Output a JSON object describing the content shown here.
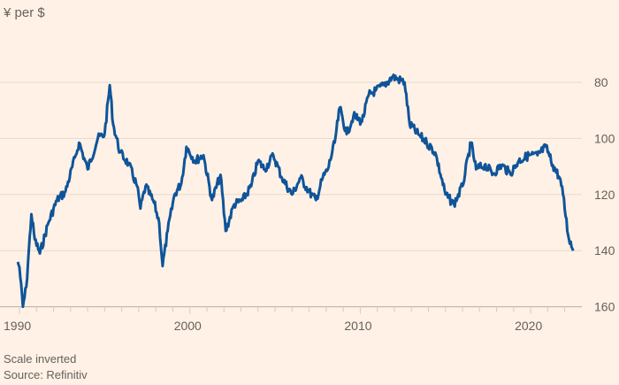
{
  "chart_data": {
    "type": "line",
    "title": "",
    "ylabel": "¥ per $",
    "xlabel": "",
    "y_inverted": true,
    "ylim": [
      80,
      160
    ],
    "xlim": [
      1990,
      2022.3
    ],
    "yticks": [
      80,
      100,
      120,
      140,
      160
    ],
    "xticks": [
      1990,
      2000,
      2010,
      2020
    ],
    "grid": true,
    "line_color": "#0f5499",
    "series": [
      {
        "name": "Yen per dollar",
        "x": [
          1989.9,
          1990.0,
          1990.2,
          1990.4,
          1990.7,
          1990.9,
          1991.2,
          1991.7,
          1992.2,
          1992.7,
          1993.3,
          1993.5,
          1994.0,
          1994.6,
          1995.0,
          1995.3,
          1995.5,
          1995.9,
          1996.4,
          1996.9,
          1997.1,
          1997.4,
          1997.9,
          1998.2,
          1998.4,
          1998.7,
          1999.1,
          1999.5,
          1999.8,
          2000.3,
          2000.8,
          2001.3,
          2001.8,
          2002.1,
          2002.6,
          2003.1,
          2003.6,
          2004.0,
          2004.4,
          2004.9,
          2005.4,
          2006.0,
          2006.5,
          2007.0,
          2007.4,
          2007.8,
          2008.1,
          2008.5,
          2008.8,
          2009.2,
          2009.6,
          2010.1,
          2010.5,
          2010.9,
          2011.4,
          2011.9,
          2012.6,
          2012.9,
          2013.4,
          2013.9,
          2014.4,
          2015.0,
          2015.5,
          2016.0,
          2016.5,
          2016.8,
          2017.3,
          2017.8,
          2018.3,
          2018.8,
          2019.3,
          2019.9,
          2020.4,
          2020.9,
          2021.3,
          2021.7,
          2021.9,
          2022.2,
          2022.5
        ],
        "values": [
          144,
          146,
          160,
          153,
          127,
          136,
          141,
          130,
          122,
          119,
          106,
          101.5,
          111,
          100,
          98.5,
          81,
          95,
          105,
          109,
          117,
          125,
          117,
          123,
          130,
          145.5,
          133,
          120,
          116,
          103,
          108,
          106,
          122,
          113,
          133,
          123.5,
          122,
          117,
          108,
          111,
          106,
          114,
          120,
          114,
          119,
          122,
          114,
          111,
          101.5,
          89,
          98.5,
          92,
          94,
          84.5,
          83,
          81,
          78,
          80,
          95,
          98.5,
          101.5,
          105,
          120,
          123.5,
          117,
          101.5,
          111,
          109.5,
          112.5,
          109.5,
          112.5,
          108,
          106,
          106,
          103,
          109.5,
          114,
          120,
          134.5,
          140
        ]
      }
    ]
  },
  "footer": {
    "note": "Scale inverted",
    "source": "Source: Refinitiv"
  }
}
